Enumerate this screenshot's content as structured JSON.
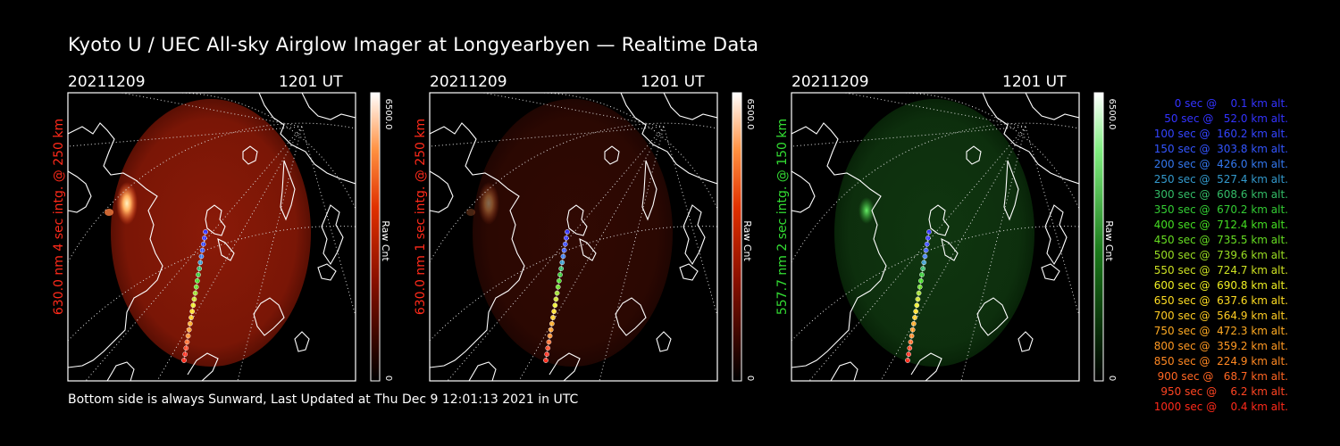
{
  "title": "Kyoto U / UEC All-sky Airglow Imager at Longyearbyen — Realtime Data",
  "footer": "Bottom side is always Sunward, Last Updated at Thu Dec  9 12:01:13 2021 in UTC",
  "panels": [
    {
      "date": "20211209",
      "time": "1201 UT",
      "label": "630.0 nm  4 sec intg. @ 250 km",
      "label_color": "#ff2a1a",
      "cb_label": "Raw Cnt",
      "cb_max": "6500.0",
      "cb_min": "0",
      "tone": "red",
      "brightness": 1.0
    },
    {
      "date": "20211209",
      "time": "1201 UT",
      "label": "630.0 nm  1 sec intg. @ 250 km",
      "label_color": "#ff2a1a",
      "cb_label": "Raw Cnt",
      "cb_max": "6500.0",
      "cb_min": "0",
      "tone": "red",
      "brightness": 0.35
    },
    {
      "date": "20211209",
      "time": "1201 UT",
      "label": "557.7 nm  2 sec intg. @ 150 km",
      "label_color": "#33dd33",
      "cb_label": "Raw Cnt",
      "cb_max": "6500.0",
      "cb_min": "0",
      "tone": "green",
      "brightness": 0.6
    }
  ],
  "legend": [
    {
      "text": "0 sec @    0.1 km alt.",
      "color": "#3333ff"
    },
    {
      "text": "50 sec @   52.0 km alt.",
      "color": "#3333ff"
    },
    {
      "text": "100 sec @  160.2 km alt.",
      "color": "#3344ff"
    },
    {
      "text": "150 sec @  303.8 km alt.",
      "color": "#3355ff"
    },
    {
      "text": "200 sec @  426.0 km alt.",
      "color": "#3377ee"
    },
    {
      "text": "250 sec @  527.4 km alt.",
      "color": "#3399cc"
    },
    {
      "text": "300 sec @  608.6 km alt.",
      "color": "#33bb66"
    },
    {
      "text": "350 sec @  670.2 km alt.",
      "color": "#33cc33"
    },
    {
      "text": "400 sec @  712.4 km alt.",
      "color": "#44dd22"
    },
    {
      "text": "450 sec @  735.5 km alt.",
      "color": "#66dd22"
    },
    {
      "text": "500 sec @  739.6 km alt.",
      "color": "#99dd22"
    },
    {
      "text": "550 sec @  724.7 km alt.",
      "color": "#cce022"
    },
    {
      "text": "600 sec @  690.8 km alt.",
      "color": "#eeee22"
    },
    {
      "text": "650 sec @  637.6 km alt.",
      "color": "#ffdd22"
    },
    {
      "text": "700 sec @  564.9 km alt.",
      "color": "#ffcc22"
    },
    {
      "text": "750 sec @  472.3 km alt.",
      "color": "#ffaa22"
    },
    {
      "text": "800 sec @  359.2 km alt.",
      "color": "#ff9922"
    },
    {
      "text": "850 sec @  224.9 km alt.",
      "color": "#ff8822"
    },
    {
      "text": "900 sec @   68.7 km alt.",
      "color": "#ff6622"
    },
    {
      "text": "950 sec @    6.2 km alt.",
      "color": "#ff4422"
    },
    {
      "text": "1000 sec @    0.4 km alt.",
      "color": "#ff2a1a"
    }
  ]
}
